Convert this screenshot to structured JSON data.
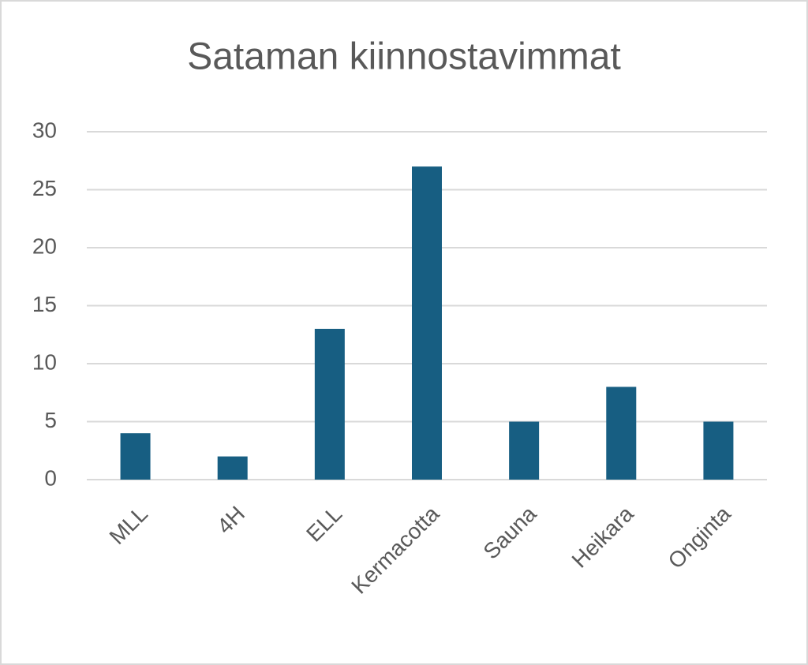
{
  "chart_data": {
    "type": "bar",
    "title": "Sataman kiinnostavimmat",
    "categories": [
      "MLL",
      "4H",
      "ELL",
      "Kermacotta",
      "Sauna",
      "Heikara",
      "Onginta"
    ],
    "values": [
      4,
      2,
      13,
      27,
      5,
      8,
      5
    ],
    "color": "#175e82",
    "ylim": [
      0,
      30
    ],
    "yticks": [
      0,
      5,
      10,
      15,
      20,
      25,
      30
    ],
    "grid": true
  }
}
